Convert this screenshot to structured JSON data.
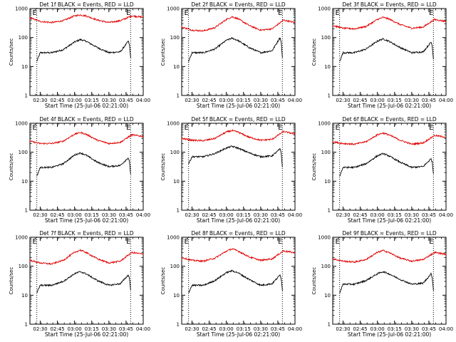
{
  "figure": {
    "colors": {
      "events": "#000000",
      "lld": "#e00000",
      "axes": "#000000",
      "background": "#ffffff"
    },
    "ylabel": "Counts/sec",
    "xlabel": "Start Time (25-Jul-06 02:21:00)"
  },
  "chart_data": [
    {
      "type": "line",
      "title": "Det 1f BLACK = Events, RED = LLD",
      "xlabel": "Start Time (25-Jul-06 02:21:00)",
      "ylabel": "Counts/sec",
      "xticks": [
        "02:30",
        "02:45",
        "03:00",
        "03:15",
        "03:30",
        "03:45",
        "04:00"
      ],
      "yticks": [
        "1",
        "10",
        "100",
        "1000"
      ],
      "xlim": [
        "02:21",
        "04:00"
      ],
      "ylim": [
        1,
        1000
      ],
      "yscale": "log",
      "grid": false,
      "markers": [
        {
          "time": "02:27",
          "label": "E"
        },
        {
          "time": "03:49",
          "label": "E"
        }
      ],
      "series": [
        {
          "name": "Events",
          "color": "#000000",
          "x": [
            "02:27",
            "02:30",
            "02:40",
            "02:50",
            "03:00",
            "03:05",
            "03:10",
            "03:20",
            "03:30",
            "03:40",
            "03:47",
            "03:48",
            "03:49"
          ],
          "y": [
            15,
            30,
            30,
            38,
            70,
            85,
            75,
            45,
            30,
            32,
            75,
            55,
            20
          ]
        },
        {
          "name": "LLD",
          "color": "#e00000",
          "x": [
            "02:21",
            "02:30",
            "02:40",
            "02:50",
            "03:00",
            "03:05",
            "03:10",
            "03:20",
            "03:30",
            "03:40",
            "03:50",
            "04:00"
          ],
          "y": [
            480,
            360,
            330,
            380,
            560,
            600,
            560,
            400,
            330,
            380,
            560,
            500
          ]
        }
      ]
    },
    {
      "type": "line",
      "title": "Det 2f BLACK = Events, RED = LLD",
      "xlabel": "Start Time (25-Jul-06 02:21:00)",
      "ylabel": "Counts/sec",
      "xticks": [
        "02:30",
        "02:45",
        "03:00",
        "03:15",
        "03:30",
        "03:45",
        "04:00"
      ],
      "yticks": [
        "1",
        "10",
        "100",
        "1000"
      ],
      "xlim": [
        "02:21",
        "04:00"
      ],
      "ylim": [
        1,
        1000
      ],
      "yscale": "log",
      "grid": false,
      "markers": [
        {
          "time": "02:27",
          "label": "E"
        },
        {
          "time": "03:49",
          "label": "E"
        }
      ],
      "series": [
        {
          "name": "Events",
          "color": "#000000",
          "x": [
            "02:27",
            "02:30",
            "02:40",
            "02:50",
            "03:00",
            "03:05",
            "03:10",
            "03:20",
            "03:30",
            "03:40",
            "03:47",
            "03:48",
            "03:49"
          ],
          "y": [
            15,
            30,
            30,
            40,
            80,
            95,
            80,
            45,
            30,
            35,
            100,
            70,
            20
          ]
        },
        {
          "name": "LLD",
          "color": "#e00000",
          "x": [
            "02:21",
            "02:30",
            "02:40",
            "02:50",
            "03:00",
            "03:05",
            "03:10",
            "03:20",
            "03:30",
            "03:40",
            "03:50",
            "04:00"
          ],
          "y": [
            230,
            180,
            170,
            220,
            420,
            520,
            450,
            260,
            180,
            200,
            400,
            330
          ]
        }
      ]
    },
    {
      "type": "line",
      "title": "Det 3f BLACK = Events, RED = LLD",
      "xlabel": "Start Time (25-Jul-06 02:21:00)",
      "ylabel": "Counts/sec",
      "xticks": [
        "02:30",
        "02:45",
        "03:00",
        "03:15",
        "03:30",
        "03:45",
        "04:00"
      ],
      "yticks": [
        "1",
        "10",
        "100",
        "1000"
      ],
      "xlim": [
        "02:21",
        "04:00"
      ],
      "ylim": [
        1,
        1000
      ],
      "yscale": "log",
      "grid": false,
      "markers": [
        {
          "time": "02:27",
          "label": "E"
        },
        {
          "time": "03:49",
          "label": "E"
        }
      ],
      "series": [
        {
          "name": "Events",
          "color": "#000000",
          "x": [
            "02:27",
            "02:30",
            "02:40",
            "02:50",
            "03:00",
            "03:05",
            "03:10",
            "03:20",
            "03:30",
            "03:40",
            "03:47",
            "03:48",
            "03:49"
          ],
          "y": [
            15,
            30,
            30,
            40,
            75,
            90,
            75,
            45,
            30,
            32,
            70,
            50,
            18
          ]
        },
        {
          "name": "LLD",
          "color": "#e00000",
          "x": [
            "02:21",
            "02:30",
            "02:40",
            "02:50",
            "03:00",
            "03:05",
            "03:10",
            "03:20",
            "03:30",
            "03:40",
            "03:50",
            "04:00"
          ],
          "y": [
            260,
            210,
            200,
            240,
            420,
            500,
            440,
            280,
            210,
            230,
            420,
            360
          ]
        }
      ]
    },
    {
      "type": "line",
      "title": "Det 4f BLACK = Events, RED = LLD",
      "xlabel": "Start Time (25-Jul-06 02:21:00)",
      "ylabel": "Counts/sec",
      "xticks": [
        "02:30",
        "02:45",
        "03:00",
        "03:15",
        "03:30",
        "03:45",
        "04:00"
      ],
      "yticks": [
        "1",
        "10",
        "100",
        "1000"
      ],
      "xlim": [
        "02:21",
        "04:00"
      ],
      "ylim": [
        1,
        1000
      ],
      "yscale": "log",
      "grid": false,
      "markers": [
        {
          "time": "02:27",
          "label": "E"
        },
        {
          "time": "03:49",
          "label": "E"
        }
      ],
      "series": [
        {
          "name": "Events",
          "color": "#000000",
          "x": [
            "02:27",
            "02:30",
            "02:40",
            "02:50",
            "03:00",
            "03:05",
            "03:10",
            "03:20",
            "03:30",
            "03:40",
            "03:47",
            "03:48",
            "03:49"
          ],
          "y": [
            15,
            30,
            30,
            40,
            80,
            95,
            80,
            45,
            32,
            35,
            65,
            45,
            18
          ]
        },
        {
          "name": "LLD",
          "color": "#e00000",
          "x": [
            "02:21",
            "02:30",
            "02:40",
            "02:50",
            "03:00",
            "03:05",
            "03:10",
            "03:20",
            "03:30",
            "03:40",
            "03:50",
            "04:00"
          ],
          "y": [
            240,
            200,
            200,
            240,
            420,
            480,
            420,
            260,
            200,
            220,
            400,
            350
          ]
        }
      ]
    },
    {
      "type": "line",
      "title": "Det 5f BLACK = Events, RED = LLD",
      "xlabel": "Start Time (25-Jul-06 02:21:00)",
      "ylabel": "Counts/sec",
      "xticks": [
        "02:30",
        "02:45",
        "03:00",
        "03:15",
        "03:30",
        "03:45",
        "04:00"
      ],
      "yticks": [
        "1",
        "10",
        "100",
        "1000"
      ],
      "xlim": [
        "02:21",
        "04:00"
      ],
      "ylim": [
        1,
        1000
      ],
      "yscale": "log",
      "grid": false,
      "markers": [
        {
          "time": "02:27",
          "label": "E"
        },
        {
          "time": "03:49",
          "label": "E"
        }
      ],
      "series": [
        {
          "name": "Events",
          "color": "#000000",
          "x": [
            "02:27",
            "02:30",
            "02:40",
            "02:50",
            "03:00",
            "03:05",
            "03:10",
            "03:20",
            "03:30",
            "03:40",
            "03:47",
            "03:48",
            "03:49"
          ],
          "y": [
            40,
            70,
            70,
            90,
            140,
            160,
            140,
            95,
            70,
            75,
            130,
            95,
            30
          ]
        },
        {
          "name": "LLD",
          "color": "#e00000",
          "x": [
            "02:21",
            "02:30",
            "02:40",
            "02:50",
            "03:00",
            "03:05",
            "03:10",
            "03:20",
            "03:30",
            "03:40",
            "03:50",
            "04:00"
          ],
          "y": [
            300,
            260,
            250,
            300,
            500,
            560,
            500,
            330,
            260,
            280,
            520,
            430
          ]
        }
      ]
    },
    {
      "type": "line",
      "title": "Det 6f BLACK = Events, RED = LLD",
      "xlabel": "Start Time (25-Jul-06 02:21:00)",
      "ylabel": "Counts/sec",
      "xticks": [
        "02:30",
        "02:45",
        "03:00",
        "03:15",
        "03:30",
        "03:45",
        "04:00"
      ],
      "yticks": [
        "1",
        "10",
        "100",
        "1000"
      ],
      "xlim": [
        "02:21",
        "04:00"
      ],
      "ylim": [
        1,
        1000
      ],
      "yscale": "log",
      "grid": false,
      "markers": [
        {
          "time": "02:27",
          "label": "E"
        },
        {
          "time": "03:49",
          "label": "E"
        }
      ],
      "series": [
        {
          "name": "Events",
          "color": "#000000",
          "x": [
            "02:27",
            "02:30",
            "02:40",
            "02:50",
            "03:00",
            "03:05",
            "03:10",
            "03:20",
            "03:30",
            "03:40",
            "03:47",
            "03:48",
            "03:49"
          ],
          "y": [
            15,
            30,
            30,
            40,
            75,
            90,
            75,
            45,
            30,
            32,
            60,
            45,
            18
          ]
        },
        {
          "name": "LLD",
          "color": "#e00000",
          "x": [
            "02:21",
            "02:30",
            "02:40",
            "02:50",
            "03:00",
            "03:05",
            "03:10",
            "03:20",
            "03:30",
            "03:40",
            "03:50",
            "04:00"
          ],
          "y": [
            230,
            200,
            190,
            230,
            400,
            460,
            400,
            260,
            190,
            210,
            380,
            330
          ]
        }
      ]
    },
    {
      "type": "line",
      "title": "Det 7f BLACK = Events, RED = LLD",
      "xlabel": "Start Time (25-Jul-06 02:21:00)",
      "ylabel": "Counts/sec",
      "xticks": [
        "02:30",
        "02:45",
        "03:00",
        "03:15",
        "03:30",
        "03:45",
        "04:00"
      ],
      "yticks": [
        "1",
        "10",
        "100",
        "1000"
      ],
      "xlim": [
        "02:21",
        "04:00"
      ],
      "ylim": [
        1,
        1000
      ],
      "yscale": "log",
      "grid": false,
      "markers": [
        {
          "time": "02:27",
          "label": "E"
        },
        {
          "time": "03:49",
          "label": "E"
        }
      ],
      "series": [
        {
          "name": "Events",
          "color": "#000000",
          "x": [
            "02:27",
            "02:30",
            "02:40",
            "02:50",
            "03:00",
            "03:05",
            "03:10",
            "03:20",
            "03:30",
            "03:40",
            "03:47",
            "03:48",
            "03:49"
          ],
          "y": [
            12,
            22,
            22,
            30,
            55,
            65,
            55,
            32,
            22,
            25,
            50,
            38,
            15
          ]
        },
        {
          "name": "LLD",
          "color": "#e00000",
          "x": [
            "02:21",
            "02:30",
            "02:40",
            "02:50",
            "03:00",
            "03:05",
            "03:10",
            "03:20",
            "03:30",
            "03:40",
            "03:50",
            "04:00"
          ],
          "y": [
            160,
            130,
            120,
            160,
            300,
            360,
            300,
            180,
            130,
            150,
            300,
            260
          ]
        }
      ]
    },
    {
      "type": "line",
      "title": "Det 8f BLACK = Events, RED = LLD",
      "xlabel": "Start Time (25-Jul-06 02:21:00)",
      "ylabel": "Counts/sec",
      "xticks": [
        "02:30",
        "02:45",
        "03:00",
        "03:15",
        "03:30",
        "03:45",
        "04:00"
      ],
      "yticks": [
        "1",
        "10",
        "100",
        "1000"
      ],
      "xlim": [
        "02:21",
        "04:00"
      ],
      "ylim": [
        1,
        1000
      ],
      "yscale": "log",
      "grid": false,
      "markers": [
        {
          "time": "02:27",
          "label": "E"
        },
        {
          "time": "03:49",
          "label": "E"
        }
      ],
      "series": [
        {
          "name": "Events",
          "color": "#000000",
          "x": [
            "02:27",
            "02:30",
            "02:40",
            "02:50",
            "03:00",
            "03:05",
            "03:10",
            "03:20",
            "03:30",
            "03:40",
            "03:47",
            "03:48",
            "03:49"
          ],
          "y": [
            12,
            22,
            22,
            32,
            60,
            70,
            60,
            35,
            22,
            25,
            50,
            38,
            15
          ]
        },
        {
          "name": "LLD",
          "color": "#e00000",
          "x": [
            "02:21",
            "02:30",
            "02:40",
            "02:50",
            "03:00",
            "03:05",
            "03:10",
            "03:20",
            "03:30",
            "03:40",
            "03:50",
            "04:00"
          ],
          "y": [
            200,
            160,
            150,
            190,
            330,
            400,
            340,
            210,
            160,
            180,
            340,
            290
          ]
        }
      ]
    },
    {
      "type": "line",
      "title": "Det 9f BLACK = Events, RED = LLD",
      "xlabel": "Start Time (25-Jul-06 02:21:00)",
      "ylabel": "Counts/sec",
      "xticks": [
        "02:30",
        "02:45",
        "03:00",
        "03:15",
        "03:30",
        "03:45",
        "04:00"
      ],
      "yticks": [
        "1",
        "10",
        "100",
        "1000"
      ],
      "xlim": [
        "02:21",
        "04:00"
      ],
      "ylim": [
        1,
        1000
      ],
      "yscale": "log",
      "grid": false,
      "markers": [
        {
          "time": "02:27",
          "label": "E"
        },
        {
          "time": "03:49",
          "label": "E"
        }
      ],
      "series": [
        {
          "name": "Events",
          "color": "#000000",
          "x": [
            "02:27",
            "02:30",
            "02:40",
            "02:50",
            "03:00",
            "03:05",
            "03:10",
            "03:20",
            "03:30",
            "03:40",
            "03:47",
            "03:48",
            "03:49"
          ],
          "y": [
            12,
            24,
            24,
            32,
            55,
            65,
            55,
            35,
            24,
            26,
            55,
            40,
            15
          ]
        },
        {
          "name": "LLD",
          "color": "#e00000",
          "x": [
            "02:21",
            "02:30",
            "02:40",
            "02:50",
            "03:00",
            "03:05",
            "03:10",
            "03:20",
            "03:30",
            "03:40",
            "03:50",
            "04:00"
          ],
          "y": [
            180,
            150,
            140,
            170,
            300,
            350,
            300,
            190,
            150,
            170,
            300,
            260
          ]
        }
      ]
    }
  ]
}
